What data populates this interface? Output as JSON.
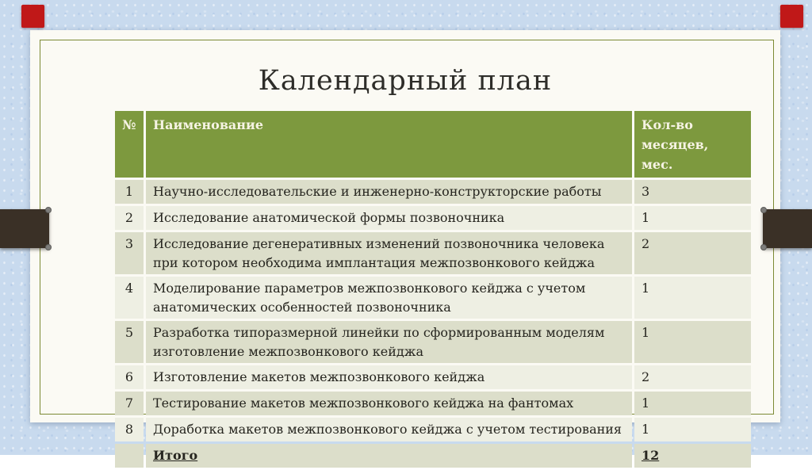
{
  "slide": {
    "title": "Календарный план"
  },
  "table": {
    "headers": {
      "num": "№",
      "name": "Наименование",
      "months": "Кол-во месяцев, мес."
    },
    "rows": [
      {
        "num": "1",
        "name": "Научно-исследовательские и инженерно-конструкторские работы",
        "months": "3"
      },
      {
        "num": "2",
        "name": "Исследование анатомической формы позвоночника",
        "months": "1"
      },
      {
        "num": "3",
        "name": "Исследование дегенеративных изменений позвоночника человека при котором необходима имплантация межпозвонкового кейджа",
        "months": "2"
      },
      {
        "num": "4",
        "name": "Моделирование параметров межпозвонкового кейджа с учетом анатомических особенностей позвоночника",
        "months": "1"
      },
      {
        "num": "5",
        "name": "Разработка типоразмерной линейки по сформированным моделям изготовление межпозвонкового кейджа",
        "months": "1"
      },
      {
        "num": "6",
        "name": "Изготовление макетов межпозвонкового кейджа",
        "months": "2"
      },
      {
        "num": "7",
        "name": "Тестирование макетов межпозвонкового кейджа на фантомах",
        "months": "1"
      },
      {
        "num": "8",
        "name": "Доработка макетов межпозвонкового кейджа с учетом тестирования",
        "months": "1"
      },
      {
        "num": "",
        "name": "Итого",
        "months": "12"
      }
    ]
  },
  "colors": {
    "background_blue": "#c8daee",
    "slide_white": "#fbfaf4",
    "frame_olive": "#7c8a34",
    "header_green": "#7d993e",
    "band_dark": "#dcdeca",
    "band_light": "#eeefe3",
    "accent_red": "#c01818",
    "side_bar_brown": "#3a3026",
    "body_text": "#26251f",
    "header_text": "#f6f3e3"
  }
}
